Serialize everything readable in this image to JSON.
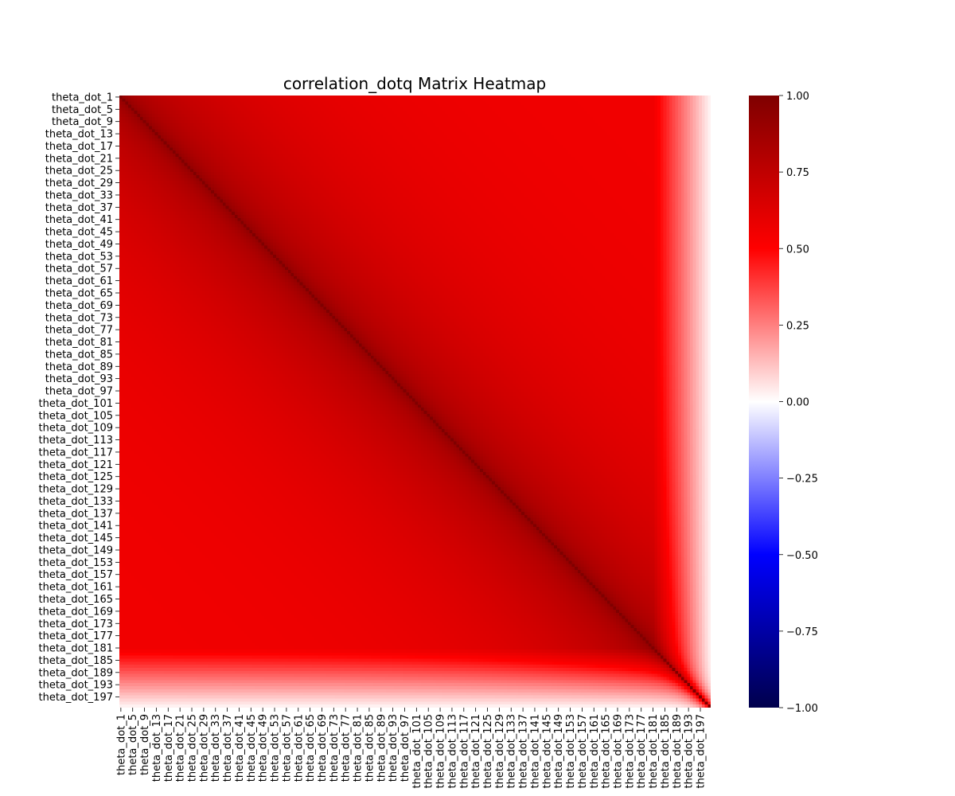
{
  "chart_data": {
    "type": "heatmap",
    "title": "correlation_dotq Matrix Heatmap",
    "xlabel": "",
    "ylabel": "",
    "n": 200,
    "row_tick_labels": [
      "theta_dot_1",
      "theta_dot_5",
      "theta_dot_9",
      "theta_dot_13",
      "theta_dot_17",
      "theta_dot_21",
      "theta_dot_25",
      "theta_dot_29",
      "theta_dot_33",
      "theta_dot_37",
      "theta_dot_41",
      "theta_dot_45",
      "theta_dot_49",
      "theta_dot_53",
      "theta_dot_57",
      "theta_dot_61",
      "theta_dot_65",
      "theta_dot_69",
      "theta_dot_73",
      "theta_dot_77",
      "theta_dot_81",
      "theta_dot_85",
      "theta_dot_89",
      "theta_dot_93",
      "theta_dot_97",
      "theta_dot_101",
      "theta_dot_105",
      "theta_dot_109",
      "theta_dot_113",
      "theta_dot_117",
      "theta_dot_121",
      "theta_dot_125",
      "theta_dot_129",
      "theta_dot_133",
      "theta_dot_137",
      "theta_dot_141",
      "theta_dot_145",
      "theta_dot_149",
      "theta_dot_153",
      "theta_dot_157",
      "theta_dot_161",
      "theta_dot_165",
      "theta_dot_169",
      "theta_dot_173",
      "theta_dot_177",
      "theta_dot_181",
      "theta_dot_185",
      "theta_dot_189",
      "theta_dot_193",
      "theta_dot_197"
    ],
    "col_tick_labels": [
      "theta_dot_1",
      "theta_dot_5",
      "theta_dot_9",
      "theta_dot_13",
      "theta_dot_17",
      "theta_dot_21",
      "theta_dot_25",
      "theta_dot_29",
      "theta_dot_33",
      "theta_dot_37",
      "theta_dot_41",
      "theta_dot_45",
      "theta_dot_49",
      "theta_dot_53",
      "theta_dot_57",
      "theta_dot_61",
      "theta_dot_65",
      "theta_dot_69",
      "theta_dot_73",
      "theta_dot_77",
      "theta_dot_81",
      "theta_dot_85",
      "theta_dot_89",
      "theta_dot_93",
      "theta_dot_97",
      "theta_dot_101",
      "theta_dot_105",
      "theta_dot_109",
      "theta_dot_113",
      "theta_dot_117",
      "theta_dot_121",
      "theta_dot_125",
      "theta_dot_129",
      "theta_dot_133",
      "theta_dot_137",
      "theta_dot_141",
      "theta_dot_145",
      "theta_dot_149",
      "theta_dot_153",
      "theta_dot_157",
      "theta_dot_161",
      "theta_dot_165",
      "theta_dot_169",
      "theta_dot_173",
      "theta_dot_177",
      "theta_dot_181",
      "theta_dot_185",
      "theta_dot_189",
      "theta_dot_193",
      "theta_dot_197"
    ],
    "tick_step": 4,
    "vmin": -1.0,
    "vmax": 1.0,
    "colormap": "seismic",
    "colormap_stops": [
      "#00004c",
      "#0000ff",
      "#ffffff",
      "#ff0000",
      "#7f0000"
    ],
    "colorbar_ticks": [
      1.0,
      0.75,
      0.5,
      0.25,
      0.0,
      -0.25,
      -0.5,
      -0.75,
      -1.0
    ],
    "colorbar_tick_labels": [
      "1.00",
      "0.75",
      "0.50",
      "0.25",
      "0.00",
      "−0.25",
      "−0.50",
      "−0.75",
      "−1.00"
    ],
    "correlation_profile": {
      "diagonal": 1.0,
      "nearby_offdiagonal": 0.85,
      "typical_offdiagonal": 0.7,
      "far_offdiagonal": 0.55,
      "edge_indices_low_correlation": [
        180,
        199
      ],
      "edge_min_value": 0.05
    },
    "grid": false,
    "legend": "colorbar-right"
  }
}
